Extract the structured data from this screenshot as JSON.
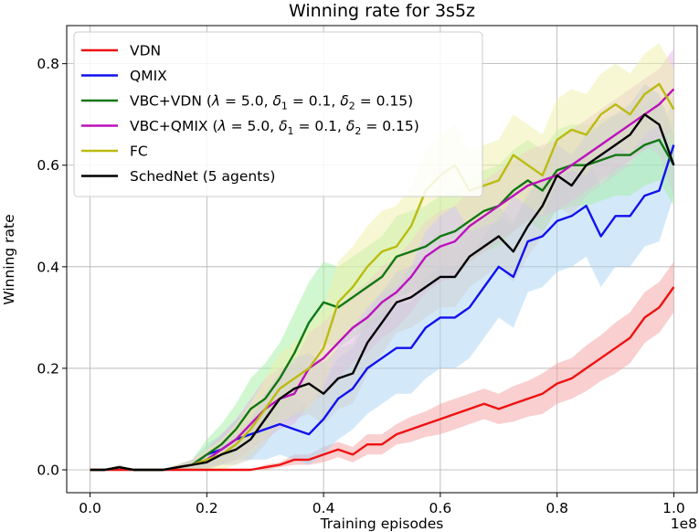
{
  "chart_data": {
    "type": "line",
    "title": "Winning rate for 3s5z",
    "xlabel": "Training episodes",
    "ylabel": "Winning rate",
    "x_offset_label": "1e8",
    "xlim": [
      -0.04,
      1.04
    ],
    "ylim": [
      -0.045,
      0.875
    ],
    "xticks": [
      0.0,
      0.2,
      0.4,
      0.6,
      0.8,
      1.0
    ],
    "xtick_labels": [
      "0.0",
      "0.2",
      "0.4",
      "0.6",
      "0.8",
      "1.0"
    ],
    "yticks": [
      0.0,
      0.2,
      0.4,
      0.6,
      0.8
    ],
    "ytick_labels": [
      "0.0",
      "0.2",
      "0.4",
      "0.6",
      "0.8"
    ],
    "grid": true,
    "legend_position": "top-left",
    "x": [
      0.0,
      0.025,
      0.05,
      0.075,
      0.1,
      0.125,
      0.15,
      0.175,
      0.2,
      0.225,
      0.25,
      0.275,
      0.3,
      0.325,
      0.35,
      0.375,
      0.4,
      0.425,
      0.45,
      0.475,
      0.5,
      0.525,
      0.55,
      0.575,
      0.6,
      0.625,
      0.65,
      0.675,
      0.7,
      0.725,
      0.75,
      0.775,
      0.8,
      0.825,
      0.85,
      0.875,
      0.9,
      0.925,
      0.95,
      0.975,
      1.0
    ],
    "series": [
      {
        "name": "VDN",
        "legend": "VDN",
        "color": "#ee1111",
        "band": "#f4a0a0",
        "values": [
          0.0,
          0.0,
          0.0,
          0.0,
          0.0,
          0.0,
          0.0,
          0.0,
          0.0,
          0.0,
          0.0,
          0.0,
          0.005,
          0.01,
          0.02,
          0.02,
          0.03,
          0.04,
          0.03,
          0.05,
          0.05,
          0.07,
          0.08,
          0.09,
          0.1,
          0.11,
          0.12,
          0.13,
          0.12,
          0.13,
          0.14,
          0.15,
          0.17,
          0.18,
          0.2,
          0.22,
          0.24,
          0.26,
          0.3,
          0.32,
          0.36
        ],
        "spread": [
          0.0,
          0.0,
          0.0,
          0.0,
          0.0,
          0.0,
          0.0,
          0.0,
          0.0,
          0.0,
          0.0,
          0.0,
          0.005,
          0.005,
          0.01,
          0.01,
          0.015,
          0.015,
          0.015,
          0.02,
          0.02,
          0.02,
          0.025,
          0.025,
          0.03,
          0.03,
          0.03,
          0.03,
          0.03,
          0.035,
          0.035,
          0.04,
          0.04,
          0.04,
          0.045,
          0.045,
          0.05,
          0.05,
          0.05,
          0.05,
          0.05
        ]
      },
      {
        "name": "QMIX",
        "legend": "QMIX",
        "color": "#1111ee",
        "band": "#a8d4f4",
        "values": [
          0.0,
          0.0,
          0.005,
          0.0,
          0.0,
          0.0,
          0.005,
          0.01,
          0.03,
          0.04,
          0.06,
          0.07,
          0.08,
          0.09,
          0.08,
          0.07,
          0.1,
          0.14,
          0.16,
          0.2,
          0.22,
          0.24,
          0.24,
          0.28,
          0.3,
          0.3,
          0.32,
          0.36,
          0.4,
          0.38,
          0.45,
          0.46,
          0.49,
          0.5,
          0.52,
          0.46,
          0.5,
          0.5,
          0.54,
          0.55,
          0.64
        ],
        "spread": [
          0.0,
          0.0,
          0.005,
          0.0,
          0.0,
          0.0,
          0.005,
          0.01,
          0.02,
          0.03,
          0.04,
          0.05,
          0.06,
          0.06,
          0.06,
          0.06,
          0.07,
          0.08,
          0.08,
          0.09,
          0.09,
          0.09,
          0.09,
          0.1,
          0.1,
          0.1,
          0.1,
          0.1,
          0.1,
          0.1,
          0.1,
          0.1,
          0.1,
          0.1,
          0.1,
          0.1,
          0.1,
          0.1,
          0.1,
          0.1,
          0.1
        ]
      },
      {
        "name": "VBC+VDN",
        "legend_prefix": "VBC+VDN (",
        "lambda": "5.0",
        "delta1": "0.1",
        "delta2": "0.15",
        "color": "#117711",
        "band": "#a4f0a4",
        "values": [
          0.0,
          0.0,
          0.005,
          0.0,
          0.0,
          0.0,
          0.005,
          0.01,
          0.03,
          0.05,
          0.08,
          0.12,
          0.14,
          0.18,
          0.23,
          0.29,
          0.33,
          0.32,
          0.34,
          0.36,
          0.38,
          0.42,
          0.43,
          0.44,
          0.46,
          0.47,
          0.49,
          0.51,
          0.52,
          0.55,
          0.57,
          0.55,
          0.59,
          0.6,
          0.6,
          0.61,
          0.62,
          0.62,
          0.64,
          0.65,
          0.6
        ],
        "spread": [
          0.0,
          0.0,
          0.005,
          0.0,
          0.0,
          0.0,
          0.005,
          0.01,
          0.03,
          0.04,
          0.05,
          0.06,
          0.07,
          0.07,
          0.08,
          0.08,
          0.08,
          0.08,
          0.08,
          0.08,
          0.08,
          0.08,
          0.08,
          0.08,
          0.08,
          0.08,
          0.08,
          0.08,
          0.08,
          0.08,
          0.08,
          0.08,
          0.08,
          0.08,
          0.08,
          0.08,
          0.08,
          0.08,
          0.08,
          0.08,
          0.08
        ]
      },
      {
        "name": "VBC+QMIX",
        "legend_prefix": "VBC+QMIX (",
        "lambda": "5.0",
        "delta1": "0.1",
        "delta2": "0.15",
        "color": "#bb11bb",
        "band": "#e8b4e8",
        "values": [
          0.0,
          0.0,
          0.005,
          0.0,
          0.0,
          0.0,
          0.005,
          0.01,
          0.02,
          0.04,
          0.06,
          0.09,
          0.12,
          0.14,
          0.15,
          0.2,
          0.22,
          0.25,
          0.28,
          0.3,
          0.33,
          0.35,
          0.38,
          0.42,
          0.44,
          0.45,
          0.48,
          0.5,
          0.52,
          0.54,
          0.56,
          0.57,
          0.58,
          0.6,
          0.62,
          0.64,
          0.66,
          0.68,
          0.7,
          0.72,
          0.75
        ],
        "spread": [
          0.0,
          0.0,
          0.005,
          0.0,
          0.0,
          0.0,
          0.005,
          0.01,
          0.02,
          0.03,
          0.04,
          0.05,
          0.06,
          0.06,
          0.06,
          0.07,
          0.07,
          0.07,
          0.07,
          0.07,
          0.07,
          0.07,
          0.07,
          0.07,
          0.07,
          0.07,
          0.07,
          0.07,
          0.07,
          0.07,
          0.07,
          0.07,
          0.07,
          0.07,
          0.07,
          0.07,
          0.07,
          0.07,
          0.07,
          0.07,
          0.08
        ]
      },
      {
        "name": "FC",
        "legend": "FC",
        "color": "#bbbb11",
        "band": "#f0f0a8",
        "values": [
          0.0,
          0.0,
          0.005,
          0.0,
          0.0,
          0.0,
          0.005,
          0.01,
          0.02,
          0.03,
          0.05,
          0.08,
          0.12,
          0.16,
          0.18,
          0.2,
          0.24,
          0.33,
          0.36,
          0.4,
          0.43,
          0.44,
          0.48,
          0.55,
          0.58,
          0.6,
          0.55,
          0.56,
          0.57,
          0.62,
          0.6,
          0.58,
          0.65,
          0.67,
          0.66,
          0.7,
          0.72,
          0.7,
          0.74,
          0.76,
          0.71
        ],
        "spread": [
          0.0,
          0.0,
          0.005,
          0.0,
          0.0,
          0.0,
          0.005,
          0.01,
          0.02,
          0.03,
          0.04,
          0.05,
          0.06,
          0.07,
          0.07,
          0.08,
          0.08,
          0.08,
          0.08,
          0.08,
          0.08,
          0.08,
          0.08,
          0.08,
          0.08,
          0.08,
          0.08,
          0.08,
          0.08,
          0.08,
          0.08,
          0.08,
          0.08,
          0.08,
          0.08,
          0.08,
          0.08,
          0.08,
          0.08,
          0.08,
          0.08
        ]
      },
      {
        "name": "SchedNet (5 agents)",
        "legend": "SchedNet (5 agents)",
        "color": "#000000",
        "band": "#d0d0d0",
        "values": [
          0.0,
          0.0,
          0.005,
          0.0,
          0.0,
          0.0,
          0.005,
          0.01,
          0.015,
          0.03,
          0.04,
          0.06,
          0.1,
          0.14,
          0.16,
          0.17,
          0.15,
          0.18,
          0.19,
          0.25,
          0.29,
          0.33,
          0.34,
          0.36,
          0.38,
          0.38,
          0.42,
          0.44,
          0.46,
          0.43,
          0.48,
          0.52,
          0.58,
          0.56,
          0.6,
          0.62,
          0.64,
          0.66,
          0.7,
          0.68,
          0.6
        ],
        "spread": [
          0.0,
          0.0,
          0.005,
          0.0,
          0.0,
          0.0,
          0.005,
          0.01,
          0.01,
          0.02,
          0.03,
          0.04,
          0.05,
          0.05,
          0.06,
          0.06,
          0.06,
          0.06,
          0.06,
          0.06,
          0.06,
          0.06,
          0.06,
          0.06,
          0.06,
          0.06,
          0.06,
          0.06,
          0.06,
          0.06,
          0.06,
          0.06,
          0.06,
          0.06,
          0.06,
          0.06,
          0.06,
          0.06,
          0.06,
          0.06,
          0.06
        ]
      }
    ]
  }
}
